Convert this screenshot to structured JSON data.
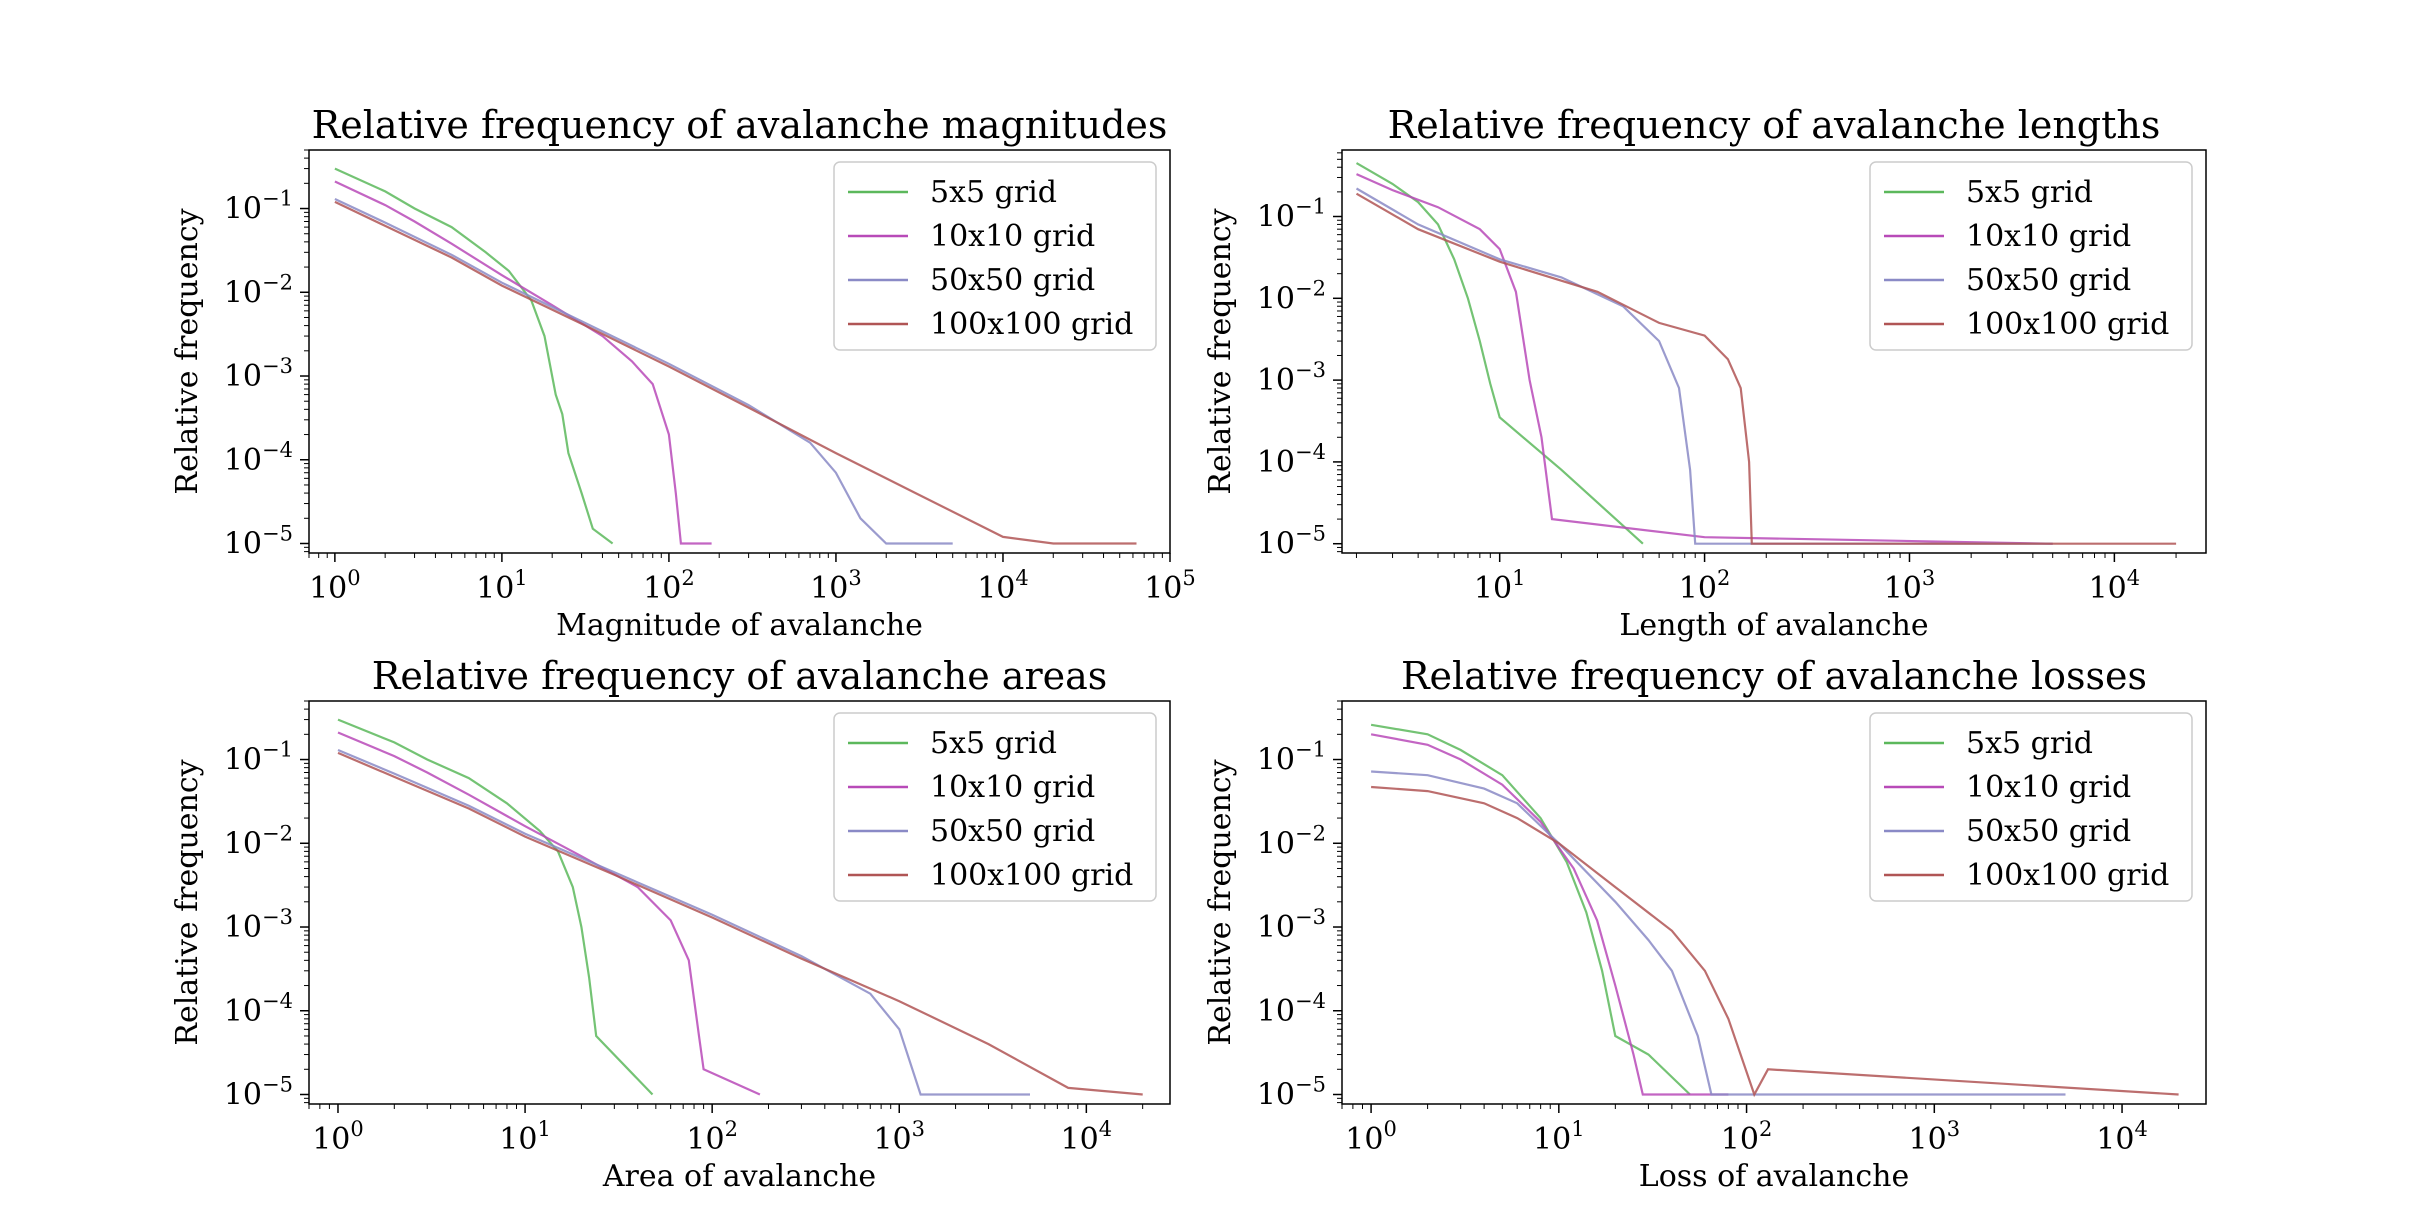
{
  "chart_data": [
    {
      "type": "line",
      "title": "Relative frequency of avalanche magnitudes",
      "xlabel": "Magnitude of avalanche",
      "ylabel": "Relative frequency",
      "xscale": "log",
      "yscale": "log",
      "xlim": [
        0.7,
        100000
      ],
      "ylim": [
        7.7e-06,
        0.5
      ],
      "xticks": [
        1,
        10,
        100,
        1000,
        10000,
        100000
      ],
      "yticks": [
        1e-05,
        0.0001,
        0.001,
        0.01,
        0.1
      ],
      "legend": "top-right",
      "series": [
        {
          "name": "5x5 grid",
          "color": "#5cb85c",
          "points": [
            [
              1,
              0.3
            ],
            [
              2,
              0.16
            ],
            [
              3,
              0.1
            ],
            [
              5,
              0.06
            ],
            [
              8,
              0.03
            ],
            [
              11,
              0.018
            ],
            [
              15,
              0.008
            ],
            [
              18,
              0.003
            ],
            [
              21,
              0.0006
            ],
            [
              23,
              0.00035
            ],
            [
              25,
              0.00012
            ],
            [
              30,
              4e-05
            ],
            [
              35,
              1.5e-05
            ],
            [
              46,
              1e-05
            ]
          ]
        },
        {
          "name": "10x10 grid",
          "color": "#b84ab8",
          "points": [
            [
              1,
              0.21
            ],
            [
              2,
              0.11
            ],
            [
              3,
              0.07
            ],
            [
              5,
              0.038
            ],
            [
              10,
              0.016
            ],
            [
              20,
              0.007
            ],
            [
              40,
              0.003
            ],
            [
              60,
              0.0015
            ],
            [
              80,
              0.0008
            ],
            [
              100,
              0.0002
            ],
            [
              110,
              4e-05
            ],
            [
              118,
              1e-05
            ],
            [
              180,
              1e-05
            ]
          ]
        },
        {
          "name": "50x50 grid",
          "color": "#8a8ac6",
          "points": [
            [
              1,
              0.13
            ],
            [
              2,
              0.068
            ],
            [
              5,
              0.028
            ],
            [
              10,
              0.013
            ],
            [
              30,
              0.0045
            ],
            [
              100,
              0.0014
            ],
            [
              300,
              0.00045
            ],
            [
              700,
              0.00016
            ],
            [
              1000,
              7e-05
            ],
            [
              1400,
              2e-05
            ],
            [
              2000,
              1e-05
            ],
            [
              5000,
              1e-05
            ]
          ]
        },
        {
          "name": "100x100 grid",
          "color": "#b05555",
          "points": [
            [
              1,
              0.12
            ],
            [
              2,
              0.062
            ],
            [
              5,
              0.026
            ],
            [
              10,
              0.012
            ],
            [
              30,
              0.0042
            ],
            [
              100,
              0.0013
            ],
            [
              300,
              0.00042
            ],
            [
              1000,
              0.00012
            ],
            [
              3000,
              4e-05
            ],
            [
              10000,
              1.2e-05
            ],
            [
              20000,
              1e-05
            ],
            [
              63000,
              1e-05
            ]
          ]
        }
      ]
    },
    {
      "type": "line",
      "title": "Relative frequency of avalanche lengths",
      "xlabel": "Length of avalanche",
      "ylabel": "Relative frequency",
      "xscale": "log",
      "yscale": "log",
      "xlim": [
        1.7,
        28000
      ],
      "ylim": [
        7.7e-06,
        0.65
      ],
      "xticks": [
        10,
        100,
        1000,
        10000
      ],
      "yticks": [
        1e-05,
        0.0001,
        0.001,
        0.01,
        0.1
      ],
      "legend": "top-right",
      "series": [
        {
          "name": "5x5 grid",
          "color": "#5cb85c",
          "points": [
            [
              2,
              0.45
            ],
            [
              3,
              0.25
            ],
            [
              4,
              0.15
            ],
            [
              5,
              0.08
            ],
            [
              6,
              0.03
            ],
            [
              7,
              0.01
            ],
            [
              8,
              0.003
            ],
            [
              9,
              0.0009
            ],
            [
              10,
              0.00035
            ],
            [
              20,
              8e-05
            ],
            [
              50,
              1e-05
            ]
          ]
        },
        {
          "name": "10x10 grid",
          "color": "#b84ab8",
          "points": [
            [
              2,
              0.33
            ],
            [
              3,
              0.21
            ],
            [
              5,
              0.13
            ],
            [
              8,
              0.07
            ],
            [
              10,
              0.04
            ],
            [
              12,
              0.012
            ],
            [
              14,
              0.001
            ],
            [
              16,
              0.0002
            ],
            [
              18,
              2e-05
            ],
            [
              100,
              1.2e-05
            ],
            [
              5000,
              1e-05
            ]
          ]
        },
        {
          "name": "50x50 grid",
          "color": "#8a8ac6",
          "points": [
            [
              2,
              0.22
            ],
            [
              4,
              0.08
            ],
            [
              10,
              0.03
            ],
            [
              20,
              0.018
            ],
            [
              40,
              0.008
            ],
            [
              60,
              0.003
            ],
            [
              75,
              0.0008
            ],
            [
              85,
              8e-05
            ],
            [
              90,
              1e-05
            ],
            [
              5000,
              1e-05
            ]
          ]
        },
        {
          "name": "100x100 grid",
          "color": "#b05555",
          "points": [
            [
              2,
              0.19
            ],
            [
              4,
              0.07
            ],
            [
              10,
              0.028
            ],
            [
              30,
              0.012
            ],
            [
              60,
              0.005
            ],
            [
              100,
              0.0035
            ],
            [
              130,
              0.0018
            ],
            [
              150,
              0.0008
            ],
            [
              165,
              0.0001
            ],
            [
              170,
              1e-05
            ],
            [
              20000,
              1e-05
            ]
          ]
        }
      ]
    },
    {
      "type": "line",
      "title": "Relative frequency of avalanche areas",
      "xlabel": "Area of avalanche",
      "ylabel": "Relative frequency",
      "xscale": "log",
      "yscale": "log",
      "xlim": [
        0.7,
        28000
      ],
      "ylim": [
        7.7e-06,
        0.5
      ],
      "xticks": [
        1,
        10,
        100,
        1000,
        10000
      ],
      "yticks": [
        1e-05,
        0.0001,
        0.001,
        0.01,
        0.1
      ],
      "legend": "top-right",
      "series": [
        {
          "name": "5x5 grid",
          "color": "#5cb85c",
          "points": [
            [
              1,
              0.3
            ],
            [
              2,
              0.16
            ],
            [
              3,
              0.1
            ],
            [
              5,
              0.06
            ],
            [
              8,
              0.03
            ],
            [
              12,
              0.014
            ],
            [
              15,
              0.008
            ],
            [
              18,
              0.003
            ],
            [
              20,
              0.001
            ],
            [
              22,
              0.00025
            ],
            [
              24,
              5e-05
            ],
            [
              48,
              1e-05
            ]
          ]
        },
        {
          "name": "10x10 grid",
          "color": "#b84ab8",
          "points": [
            [
              1,
              0.21
            ],
            [
              2,
              0.11
            ],
            [
              3,
              0.07
            ],
            [
              5,
              0.038
            ],
            [
              10,
              0.016
            ],
            [
              20,
              0.007
            ],
            [
              40,
              0.003
            ],
            [
              60,
              0.0012
            ],
            [
              75,
              0.0004
            ],
            [
              85,
              5e-05
            ],
            [
              90,
              2e-05
            ],
            [
              180,
              1e-05
            ]
          ]
        },
        {
          "name": "50x50 grid",
          "color": "#8a8ac6",
          "points": [
            [
              1,
              0.13
            ],
            [
              2,
              0.068
            ],
            [
              5,
              0.028
            ],
            [
              10,
              0.013
            ],
            [
              30,
              0.0045
            ],
            [
              100,
              0.0014
            ],
            [
              300,
              0.00045
            ],
            [
              700,
              0.00016
            ],
            [
              1000,
              6e-05
            ],
            [
              1300,
              1e-05
            ],
            [
              5000,
              1e-05
            ]
          ]
        },
        {
          "name": "100x100 grid",
          "color": "#b05555",
          "points": [
            [
              1,
              0.12
            ],
            [
              2,
              0.062
            ],
            [
              5,
              0.026
            ],
            [
              10,
              0.012
            ],
            [
              30,
              0.0042
            ],
            [
              100,
              0.0013
            ],
            [
              300,
              0.00042
            ],
            [
              1000,
              0.00013
            ],
            [
              3000,
              4e-05
            ],
            [
              8000,
              1.2e-05
            ],
            [
              20000,
              1e-05
            ]
          ]
        }
      ]
    },
    {
      "type": "line",
      "title": "Relative frequency of avalanche losses",
      "xlabel": "Loss of avalanche",
      "ylabel": "Relative frequency",
      "xscale": "log",
      "yscale": "log",
      "xlim": [
        0.7,
        28000
      ],
      "ylim": [
        7.7e-06,
        0.5
      ],
      "xticks": [
        1,
        10,
        100,
        1000,
        10000
      ],
      "yticks": [
        1e-05,
        0.0001,
        0.001,
        0.01,
        0.1
      ],
      "legend": "top-right",
      "series": [
        {
          "name": "5x5 grid",
          "color": "#5cb85c",
          "points": [
            [
              1,
              0.26
            ],
            [
              2,
              0.2
            ],
            [
              3,
              0.13
            ],
            [
              5,
              0.065
            ],
            [
              8,
              0.02
            ],
            [
              11,
              0.006
            ],
            [
              14,
              0.0015
            ],
            [
              17,
              0.0003
            ],
            [
              20,
              5e-05
            ],
            [
              30,
              3e-05
            ],
            [
              50,
              1e-05
            ]
          ]
        },
        {
          "name": "10x10 grid",
          "color": "#b84ab8",
          "points": [
            [
              1,
              0.2
            ],
            [
              2,
              0.15
            ],
            [
              3,
              0.1
            ],
            [
              5,
              0.05
            ],
            [
              8,
              0.018
            ],
            [
              12,
              0.005
            ],
            [
              16,
              0.0012
            ],
            [
              20,
              0.0002
            ],
            [
              25,
              3e-05
            ],
            [
              28,
              1e-05
            ],
            [
              80,
              1e-05
            ]
          ]
        },
        {
          "name": "50x50 grid",
          "color": "#8a8ac6",
          "points": [
            [
              1,
              0.072
            ],
            [
              2,
              0.065
            ],
            [
              4,
              0.045
            ],
            [
              6,
              0.03
            ],
            [
              10,
              0.01
            ],
            [
              20,
              0.002
            ],
            [
              30,
              0.0007
            ],
            [
              40,
              0.0003
            ],
            [
              55,
              5e-05
            ],
            [
              65,
              1e-05
            ],
            [
              5000,
              1e-05
            ]
          ]
        },
        {
          "name": "100x100 grid",
          "color": "#b05555",
          "points": [
            [
              1,
              0.047
            ],
            [
              2,
              0.042
            ],
            [
              4,
              0.03
            ],
            [
              6,
              0.02
            ],
            [
              10,
              0.01
            ],
            [
              20,
              0.003
            ],
            [
              40,
              0.0009
            ],
            [
              60,
              0.0003
            ],
            [
              80,
              8e-05
            ],
            [
              110,
              1e-05
            ],
            [
              130,
              2e-05
            ],
            [
              20000,
              1e-05
            ]
          ]
        }
      ]
    }
  ]
}
